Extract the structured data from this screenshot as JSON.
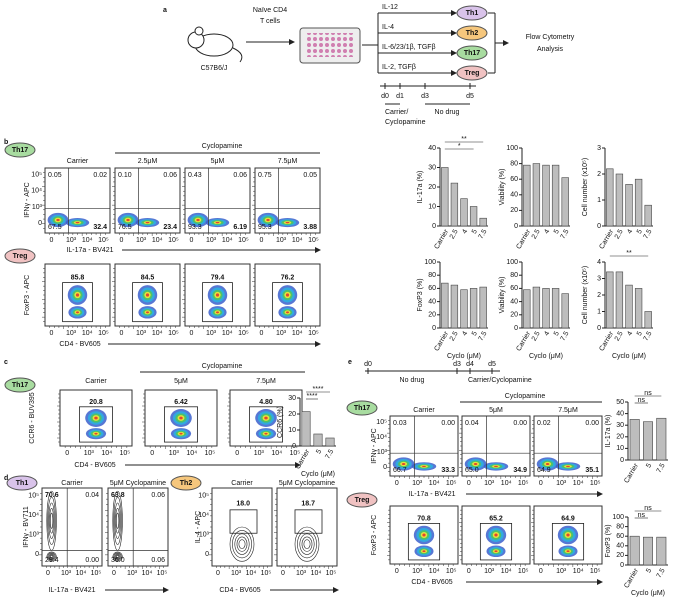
{
  "panel_a": {
    "label": "a",
    "strain": "C57B6/J",
    "cells": [
      "Naïve CD4",
      "T cells"
    ],
    "conditions": [
      {
        "cytokines": "IL-12",
        "subset": "Th1"
      },
      {
        "cytokines": "IL-4",
        "subset": "Th2"
      },
      {
        "cytokines": "IL-6/23/1β, TGFβ",
        "subset": "Th17"
      },
      {
        "cytokines": "IL-2, TGFβ",
        "subset": "Treg"
      }
    ],
    "readout": [
      "Flow Cytometry",
      "Analysis"
    ],
    "days": [
      "d0",
      "d1",
      "d3",
      "d5"
    ],
    "treatment": [
      "Carrier/",
      "Cyclopamine"
    ],
    "washout": "No drug"
  },
  "flow_ticks": [
    "0",
    "10³",
    "10⁴",
    "10⁵"
  ],
  "panel_b": {
    "label": "b",
    "treatment": "Cyclopamine",
    "columns": [
      "Carrier",
      "2.5μM",
      "5μM",
      "7.5μM"
    ],
    "th17": {
      "population": "Th17",
      "y_axis": "IFNγ - APC",
      "x_axis": "IL-17a - BV421",
      "plots": [
        [
          "0.05",
          "0.02",
          "67.5",
          "32.4"
        ],
        [
          "0.10",
          "0.06",
          "76.5",
          "23.4"
        ],
        [
          "0.43",
          "0.06",
          "93.3",
          "6.19"
        ],
        [
          "0.75",
          "0.05",
          "95.3",
          "3.88"
        ]
      ]
    },
    "treg": {
      "population": "Treg",
      "y_axis": "FoxP3 - APC",
      "x_axis": "CD4 - BV605",
      "plots": [
        "85.8",
        "84.5",
        "79.4",
        "76.2"
      ]
    },
    "charts": [
      {
        "type": "bar",
        "ylabel": "IL-17a (%)",
        "categories": [
          "Carrier",
          "2.5",
          "4",
          "5",
          "7.5"
        ],
        "values": [
          30,
          22,
          14,
          10,
          4
        ],
        "ylim": [
          0,
          40
        ],
        "yticks": [
          0,
          10,
          20,
          30,
          40
        ],
        "significance": [
          "**",
          "*"
        ]
      },
      {
        "type": "bar",
        "ylabel": "Viability (%)",
        "categories": [
          "Carrier",
          "2.5",
          "4",
          "5",
          "7.5"
        ],
        "values": [
          78,
          80,
          78,
          78,
          62
        ],
        "ylim": [
          0,
          100
        ],
        "yticks": [
          0,
          20,
          40,
          60,
          80,
          100
        ]
      },
      {
        "type": "bar",
        "ylabel": "Cell number (x10⁵)",
        "categories": [
          "Carrier",
          "2.5",
          "4",
          "5",
          "7.5"
        ],
        "values": [
          2.2,
          2.0,
          1.6,
          1.8,
          0.8
        ],
        "ylim": [
          0,
          3
        ],
        "yticks": [
          0,
          1,
          2,
          3
        ]
      },
      {
        "type": "bar",
        "ylabel": "FoxP3 (%)",
        "categories": [
          "Carrier",
          "2.5",
          "4",
          "5",
          "7.5"
        ],
        "values": [
          68,
          65,
          58,
          60,
          62
        ],
        "ylim": [
          0,
          100
        ],
        "yticks": [
          0,
          20,
          40,
          60,
          80,
          100
        ],
        "xlabel": "Cyclo (μM)"
      },
      {
        "type": "bar",
        "ylabel": "Viability (%)",
        "categories": [
          "Carrier",
          "2.5",
          "4",
          "5",
          "7.5"
        ],
        "values": [
          58,
          62,
          60,
          60,
          52
        ],
        "ylim": [
          0,
          100
        ],
        "yticks": [
          0,
          20,
          40,
          60,
          80,
          100
        ],
        "xlabel": "Cyclo (μM)"
      },
      {
        "type": "bar",
        "ylabel": "Cell number (x10⁵)",
        "categories": [
          "Carrier",
          "2.5",
          "4",
          "5",
          "7.5"
        ],
        "values": [
          3.4,
          3.4,
          2.6,
          2.4,
          1.0
        ],
        "ylim": [
          0,
          4
        ],
        "yticks": [
          0,
          1,
          2,
          3,
          4
        ],
        "xlabel": "Cyclo (μM)",
        "significance": [
          "**"
        ]
      }
    ]
  },
  "panel_c": {
    "label": "c",
    "population": "Th17",
    "treatment": "Cyclopamine",
    "columns": [
      "Carrier",
      "5μM",
      "7.5μM"
    ],
    "y_axis": "CCR6 - BUV395",
    "x_axis": "CD4 - BV605",
    "plots": [
      "20.8",
      "6.42",
      "4.80"
    ],
    "chart": {
      "type": "bar",
      "ylabel": "CCR6 (%)",
      "categories": [
        "Carrier",
        "5",
        "7.5"
      ],
      "values": [
        21.5,
        7.5,
        5
      ],
      "ylim": [
        0,
        30
      ],
      "yticks": [
        0,
        10,
        20,
        30
      ],
      "xlabel": "Cyclo (μM)",
      "significance": [
        "****",
        "****"
      ]
    }
  },
  "panel_d": {
    "label": "d",
    "th1": {
      "population": "Th1",
      "columns": [
        "Carrier",
        "5μM Cyclopamine"
      ],
      "y_axis": "IFNγ - BV711",
      "x_axis": "IL-17a - BV421",
      "plots": [
        [
          "70.6",
          "0.04",
          "29.4",
          "0.00"
        ],
        [
          "63.8",
          "0.06",
          "36.0",
          "0.06"
        ]
      ]
    },
    "th2": {
      "population": "Th2",
      "columns": [
        "Carrier",
        "5μM Cyclopamine"
      ],
      "y_axis": "IL-4 - APC",
      "x_axis": "CD4 - BV605",
      "plots": [
        "18.0",
        "18.7"
      ]
    }
  },
  "panel_e": {
    "label": "e",
    "days": [
      "d0",
      "d3",
      "d4",
      "d5"
    ],
    "washout": "No drug",
    "treatment_window": "Carrier/Cyclopamine",
    "treatment": "Cyclopamine",
    "columns": [
      "Carrier",
      "5μM",
      "7.5μM"
    ],
    "th17": {
      "population": "Th17",
      "y_axis": "IFNγ - APC",
      "x_axis": "IL-17a - BV421",
      "plots": [
        [
          "0.03",
          "0.00",
          "66.7",
          "33.3"
        ],
        [
          "0.04",
          "0.00",
          "65.0",
          "34.9"
        ],
        [
          "0.02",
          "0.00",
          "64.9",
          "35.1"
        ]
      ],
      "chart": {
        "type": "bar",
        "ylabel": "IL-17a (%)",
        "categories": [
          "Carrier",
          "5",
          "7.5"
        ],
        "values": [
          35,
          33,
          36
        ],
        "ylim": [
          0,
          50
        ],
        "yticks": [
          0,
          10,
          20,
          30,
          40,
          50
        ],
        "significance": [
          "ns",
          "ns"
        ]
      }
    },
    "treg": {
      "population": "Treg",
      "y_axis": "FoxP3 - APC",
      "x_axis": "CD4 - BV605",
      "plots": [
        "70.8",
        "65.2",
        "64.9"
      ],
      "chart": {
        "type": "bar",
        "ylabel": "FoxP3 (%)",
        "categories": [
          "Carrier",
          "5",
          "7.5"
        ],
        "values": [
          60,
          58,
          58
        ],
        "ylim": [
          0,
          100
        ],
        "yticks": [
          0,
          20,
          40,
          60,
          80,
          100
        ],
        "xlabel": "Cyclo (μM)",
        "significance": [
          "ns",
          "ns"
        ]
      }
    }
  }
}
